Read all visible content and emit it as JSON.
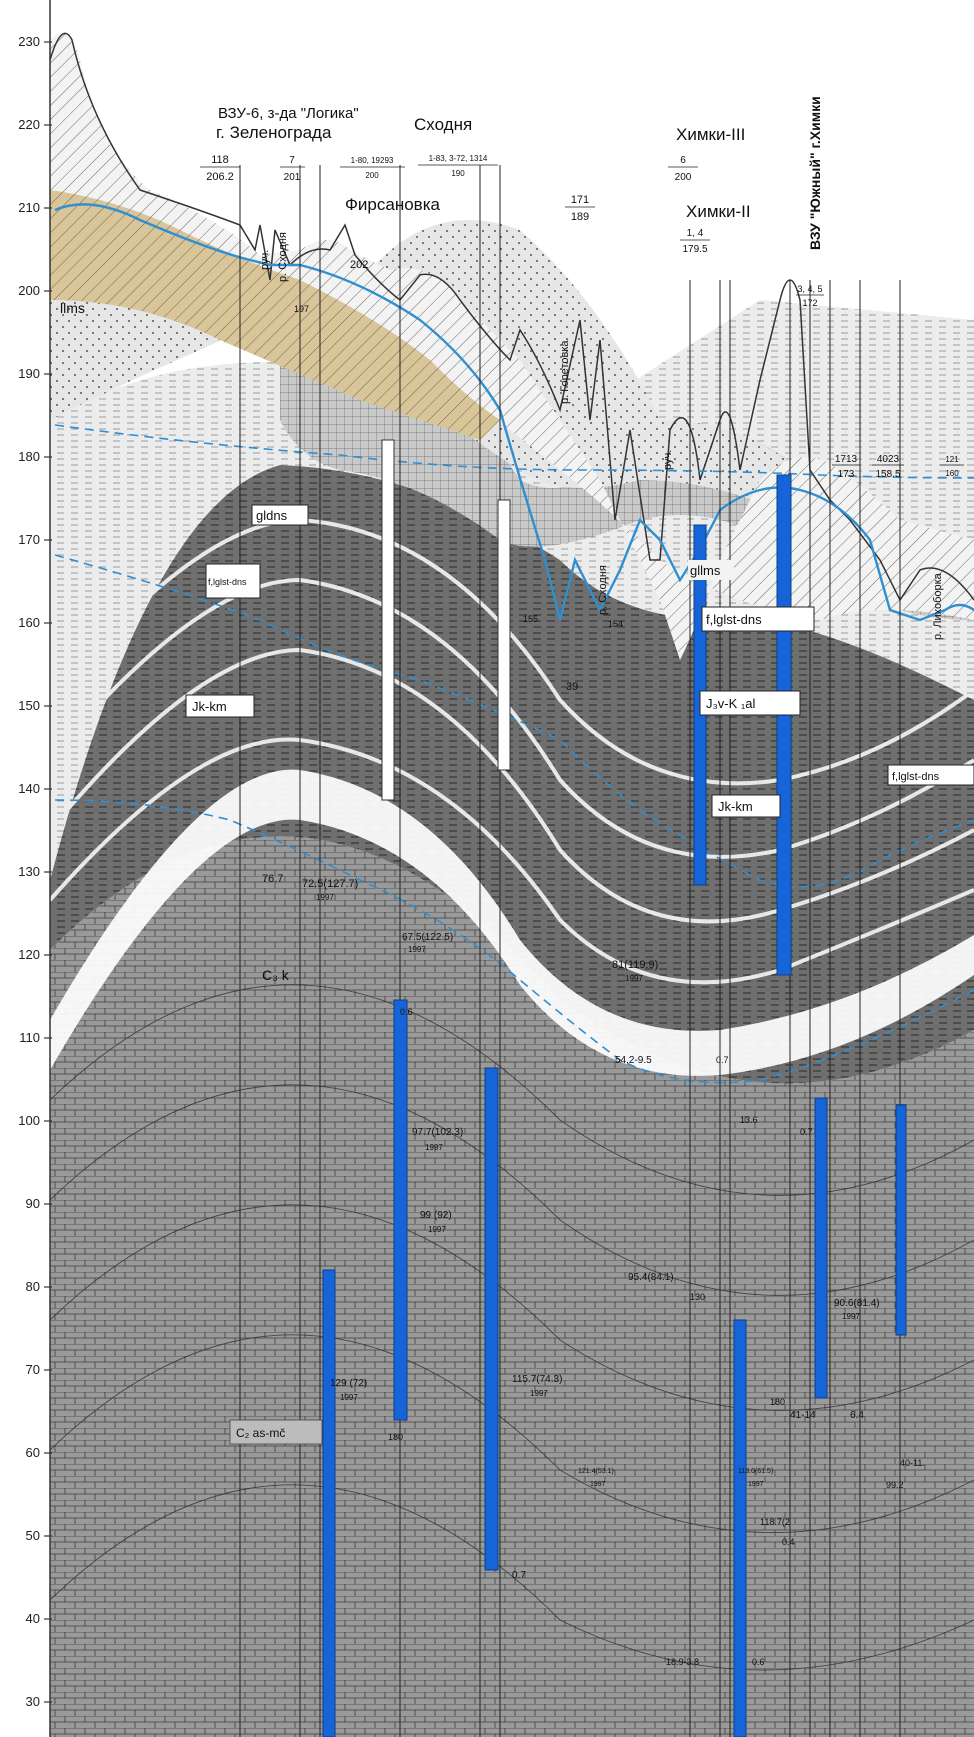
{
  "axis": {
    "ticks": [
      "230",
      "220",
      "210",
      "200",
      "190",
      "180",
      "170",
      "160",
      "150",
      "140",
      "130",
      "120",
      "110",
      "100",
      "90",
      "80",
      "70",
      "60",
      "50",
      "40",
      "30"
    ]
  },
  "top_labels": {
    "vzu6": "ВЗУ-6, з-да \"Логика\"",
    "zelenograd": "г. Зеленограда",
    "skhodnya": "Сходня",
    "firsanovka": "Фирсановка",
    "khimki3": "Химки-III",
    "khimki2": "Химки-II",
    "vzu_yuzhny": "ВЗУ \"Южный\" г.Химки"
  },
  "well_fractions": [
    {
      "num": "118",
      "den": "206.2"
    },
    {
      "num": "7",
      "den": "201"
    },
    {
      "num": "1-80, 19293",
      "den": "200"
    },
    {
      "num": "1-83, 3-72, 1314",
      "den": "190"
    },
    {
      "num": "171",
      "den": "189"
    },
    {
      "num": "6",
      "den": "200"
    },
    {
      "num": "1, 4",
      "den": "179.5"
    },
    {
      "num": "3, 4, 5",
      "den": "172"
    },
    {
      "num": "1713",
      "den": "173"
    },
    {
      "num": "4023",
      "den": "158.5"
    },
    {
      "num": "121",
      "den": "160"
    }
  ],
  "rivers": {
    "r1": "руч.",
    "r2": "р. Сходня",
    "r3": "р. Горетовка",
    "r4": "р. Сходня",
    "r5": "руч.",
    "r6": "р. Лихоборка"
  },
  "unit_labels": {
    "llms": "llms",
    "gldns": "gldns",
    "fglst": "f,lglst-dns",
    "jkkm1": "Jk-km",
    "jkkm2": "Jk-km",
    "glms": "gllms",
    "fglst2": "f,lglst-dns",
    "j3vk": "J₃v-K ₁al",
    "fglst3": "f,lglst-dns",
    "c3k": "C₃ k",
    "c2": "C₂ as-mč"
  },
  "annotations": {
    "a202": "202",
    "a197top": "197",
    "a155": "155",
    "a154": "154",
    "a39": "39",
    "h1": "76.7",
    "h2": "72.5(127.7)",
    "h2y": "1997",
    "h3": "67.5(122.5)",
    "h3y": "1997",
    "h4": "81(119.9)",
    "h4y": "1997",
    "h5": "97.7(102.3)",
    "h5y": "1997",
    "h6": "99 (92)",
    "h6y": "1997",
    "h7": "95.4(84.1)",
    "h8": "90.6(81.4)",
    "h8y": "1997",
    "h9": "129 (72)",
    "h9y": "1997",
    "h10": "115.7(74.3)",
    "h10y": "1997",
    "h11": "121.4(53.1)",
    "h11y": "1997",
    "h12": "113.0(61.5)",
    "h12y": "1997",
    "h13": "118.7(2",
    "w1": "0.6",
    "w2": "54.2-9.5",
    "w3": "0.7",
    "w4": "13.6",
    "w5": "0.7",
    "w6": "41-14",
    "w7": "6.4",
    "w8": "40-11.",
    "w9": "99.2",
    "w10": "0.7",
    "w11": "0.4",
    "w12": "18.9-3.8",
    "w13": "0.6",
    "d180a": "180",
    "d180b": "180",
    "d130": "130"
  },
  "colors": {
    "water_table": "#2f8fd0",
    "well_filter": "#1565d8",
    "sand_fill": "#d9c59a",
    "dark_fill": "#7d7d7d"
  }
}
